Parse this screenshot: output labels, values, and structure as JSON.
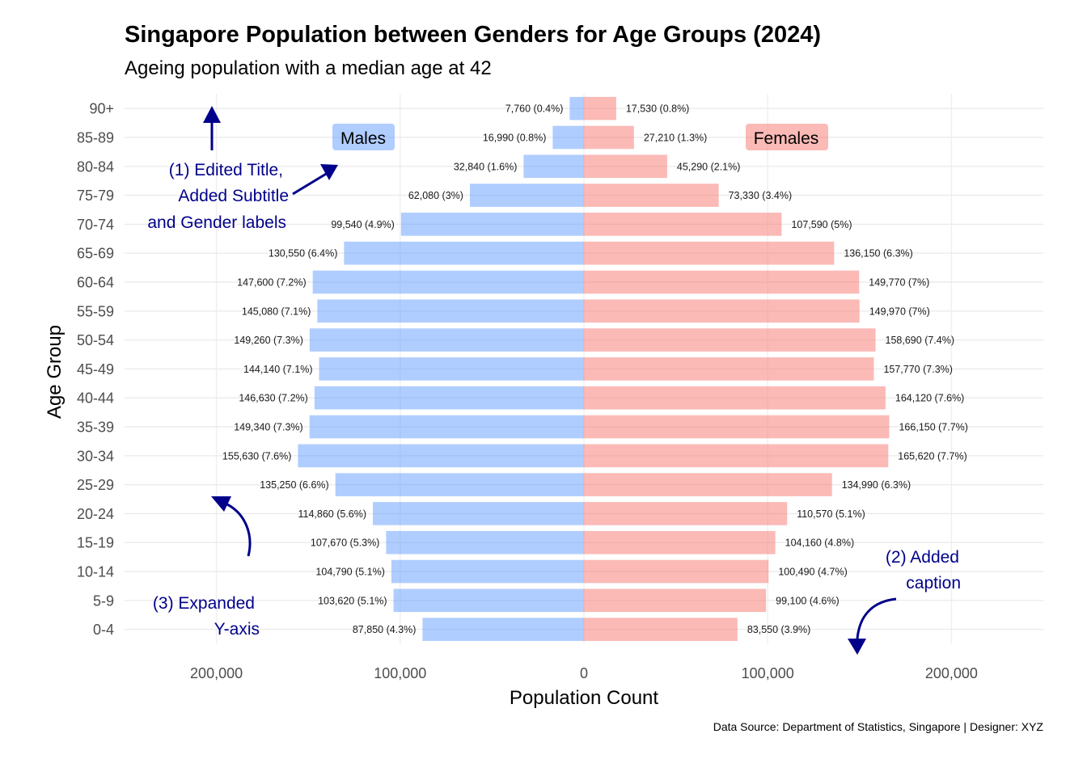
{
  "chart_data": {
    "type": "bar",
    "orientation": "horizontal",
    "title": "Singapore Population between Genders for Age Groups (2024)",
    "subtitle": "Ageing population with a median age at 42",
    "xlabel": "Population Count",
    "ylabel": "Age Group",
    "caption": "Data Source: Department of Statistics, Singapore | Designer: XYZ",
    "xlim": [
      -250000,
      250000
    ],
    "x_ticks": [
      -200000,
      -100000,
      0,
      100000,
      200000
    ],
    "x_tick_labels": [
      "200,000",
      "100,000",
      "0",
      "100,000",
      "200,000"
    ],
    "grid": true,
    "categories": [
      "0-4",
      "5-9",
      "10-14",
      "15-19",
      "20-24",
      "25-29",
      "30-34",
      "35-39",
      "40-44",
      "45-49",
      "50-54",
      "55-59",
      "60-64",
      "65-69",
      "70-74",
      "75-79",
      "80-84",
      "85-89",
      "90+"
    ],
    "series": [
      {
        "name": "Males",
        "color": "#619cff",
        "values": [
          87850,
          103620,
          104790,
          107670,
          114860,
          135250,
          155630,
          149340,
          146630,
          144140,
          149260,
          145080,
          147600,
          130550,
          99540,
          62080,
          32840,
          16990,
          7760
        ],
        "labels": [
          "87,850  (4.3%)",
          "103,620  (5.1%)",
          "104,790  (5.1%)",
          "107,670  (5.3%)",
          "114,860  (5.6%)",
          "135,250  (6.6%)",
          "155,630  (7.6%)",
          "149,340  (7.3%)",
          "146,630  (7.2%)",
          "144,140  (7.1%)",
          "149,260  (7.3%)",
          "145,080  (7.1%)",
          "147,600  (7.2%)",
          "130,550  (6.4%)",
          "99,540  (4.9%)",
          "62,080  (3%)",
          "32,840  (1.6%)",
          "16,990  (0.8%)",
          "7,760  (0.4%)"
        ]
      },
      {
        "name": "Females",
        "color": "#f8766d",
        "values": [
          83550,
          99100,
          100490,
          104160,
          110570,
          134990,
          165620,
          166150,
          164120,
          157770,
          158690,
          149970,
          149770,
          136150,
          107590,
          73330,
          45290,
          27210,
          17530
        ],
        "labels": [
          "83,550  (3.9%)",
          "99,100  (4.6%)",
          "100,490  (4.7%)",
          "104,160  (4.8%)",
          "110,570  (5.1%)",
          "134,990  (6.3%)",
          "165,620  (7.7%)",
          "166,150  (7.7%)",
          "164,120  (7.6%)",
          "157,770  (7.3%)",
          "158,690  (7.4%)",
          "149,970  (7%)",
          "149,770  (7%)",
          "136,150  (6.3%)",
          "107,590  (5%)",
          "73,330  (3.4%)",
          "45,290  (2.1%)",
          "27,210  (1.3%)",
          "17,530  (0.8%)"
        ]
      }
    ],
    "gender_labels": {
      "males": "Males",
      "females": "Females"
    },
    "annotations": [
      {
        "id": "title",
        "lines": [
          "(1) Edited Title,",
          "Added Subtitle",
          "and Gender labels"
        ]
      },
      {
        "id": "caption",
        "lines": [
          "(2) Added",
          "caption"
        ]
      },
      {
        "id": "yaxis",
        "lines": [
          "(3) Expanded",
          "Y-axis"
        ]
      }
    ],
    "annotation_color": "#00008b"
  }
}
